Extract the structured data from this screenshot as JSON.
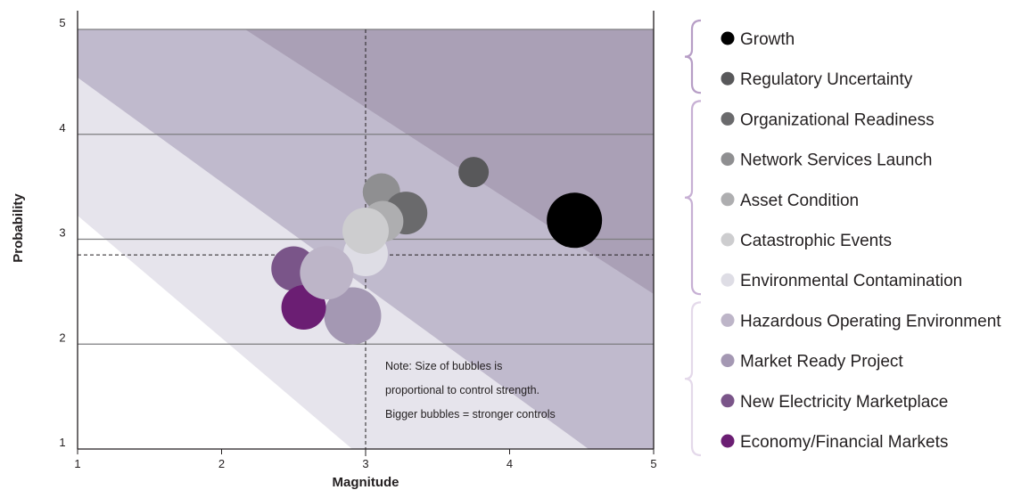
{
  "chart_data": {
    "type": "scatter",
    "subtype": "bubble",
    "title": "",
    "xlabel": "Magnitude",
    "ylabel": "Probability",
    "xlim": [
      1,
      5
    ],
    "ylim": [
      1,
      5
    ],
    "x_ticks": [
      "1",
      "2",
      "3",
      "4",
      "5"
    ],
    "y_ticks": [
      "1",
      "2",
      "3",
      "4",
      "5"
    ],
    "grid": "horizontal",
    "reference_lines": {
      "x": 3.0,
      "y": 2.85,
      "style": "dashed"
    },
    "risk_bands": [
      {
        "level": "low",
        "color": "#e6e4ec"
      },
      {
        "level": "medium",
        "color": "#c0bacd"
      },
      {
        "level": "high",
        "color": "#aaa0b6"
      }
    ],
    "note_lines": [
      "Note: Size of bubbles is",
      "proportional to control strength.",
      "Bigger bubbles = stronger controls"
    ],
    "legend_position": "right",
    "legend_groups": [
      {
        "items": [
          0,
          1
        ],
        "color": "#b79ec6"
      },
      {
        "items": [
          2,
          3,
          4,
          5,
          6
        ],
        "color": "#c7b0d4"
      },
      {
        "items": [
          7,
          8,
          9,
          10
        ],
        "color": "#e4d9ea"
      }
    ],
    "series": [
      {
        "name": "Growth",
        "x": 4.45,
        "y": 3.18,
        "size": 31,
        "color": "#000000"
      },
      {
        "name": "Regulatory Uncertainty",
        "x": 3.75,
        "y": 3.64,
        "size": 17,
        "color": "#58585a"
      },
      {
        "name": "Organizational Readiness",
        "x": 3.28,
        "y": 3.25,
        "size": 24,
        "color": "#6a6a6c"
      },
      {
        "name": "Network Services Launch",
        "x": 3.11,
        "y": 3.45,
        "size": 21,
        "color": "#8f8f91"
      },
      {
        "name": "Asset Condition",
        "x": 3.12,
        "y": 3.17,
        "size": 23,
        "color": "#aeaeb0"
      },
      {
        "name": "Catastrophic Events",
        "x": 3.0,
        "y": 3.08,
        "size": 26,
        "color": "#cdcdcf"
      },
      {
        "name": "Environmental Contamination",
        "x": 3.0,
        "y": 2.86,
        "size": 25,
        "color": "#dedde5"
      },
      {
        "name": "Hazardous Operating Environment",
        "x": 2.73,
        "y": 2.68,
        "size": 30,
        "color": "#bdb5c8"
      },
      {
        "name": "Market Ready Project",
        "x": 2.91,
        "y": 2.27,
        "size": 32,
        "color": "#a498b3"
      },
      {
        "name": "New Electricity Marketplace",
        "x": 2.5,
        "y": 2.72,
        "size": 25,
        "color": "#7a5589"
      },
      {
        "name": "Economy/Financial Markets",
        "x": 2.57,
        "y": 2.35,
        "size": 25,
        "color": "#6b1e73"
      }
    ]
  }
}
